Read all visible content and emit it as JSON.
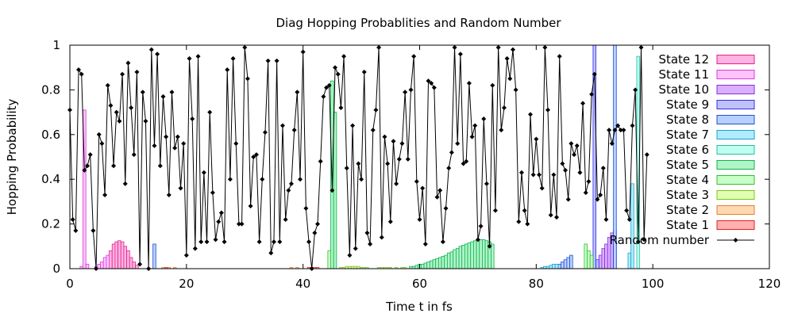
{
  "chart_data": {
    "type": "bar",
    "title": "Diag Hopping Probablities and Random Number",
    "xlabel": "Time t in fs",
    "ylabel": "Hopping Probability",
    "xlim": [
      0,
      120
    ],
    "ylim": [
      0,
      1
    ],
    "xticks": [
      "0",
      "20",
      "40",
      "60",
      "80",
      "100",
      "120"
    ],
    "yticks": [
      "0",
      "0.2",
      "0.4",
      "0.6",
      "0.8",
      "1"
    ],
    "legend_position": "top-right",
    "grid": false,
    "series": [
      {
        "name": "State 12",
        "fill": "#ffb3e0",
        "stroke": "#e0208f",
        "bars": [
          [
            7.0,
            0.08
          ],
          [
            7.5,
            0.11
          ],
          [
            8.0,
            0.12
          ],
          [
            8.5,
            0.125
          ],
          [
            9.0,
            0.12
          ],
          [
            9.5,
            0.1
          ],
          [
            10.0,
            0.08
          ],
          [
            10.5,
            0.05
          ],
          [
            11.0,
            0.03
          ],
          [
            11.5,
            0.015
          ]
        ]
      },
      {
        "name": "State 11",
        "fill": "#ffc2ff",
        "stroke": "#d43fd4",
        "bars": [
          [
            2.0,
            0.01
          ],
          [
            2.5,
            0.71
          ],
          [
            3.0,
            0.02
          ],
          [
            4.5,
            0.01
          ],
          [
            5.0,
            0.02
          ],
          [
            5.5,
            0.03
          ],
          [
            6.0,
            0.05
          ],
          [
            6.5,
            0.06
          ]
        ]
      },
      {
        "name": "State 10",
        "fill": "#d8b0ff",
        "stroke": "#8a2be2",
        "bars": [
          [
            91.0,
            0.06
          ],
          [
            91.5,
            0.09
          ],
          [
            92.0,
            0.11
          ],
          [
            92.5,
            0.14
          ],
          [
            93.0,
            0.16
          ]
        ]
      },
      {
        "name": "State 9",
        "fill": "#c0c0ff",
        "stroke": "#3030e0",
        "bars": [
          [
            90.0,
            1.0
          ],
          [
            90.5,
            0.04
          ],
          [
            93.5,
            0.17
          ]
        ]
      },
      {
        "name": "State 8",
        "fill": "#b8d0ff",
        "stroke": "#2050d0",
        "bars": [
          [
            14.5,
            0.11
          ],
          [
            84.0,
            0.02
          ],
          [
            84.5,
            0.03
          ],
          [
            85.0,
            0.04
          ],
          [
            85.5,
            0.05
          ],
          [
            86.0,
            0.06
          ],
          [
            93.5,
            1.0
          ]
        ]
      },
      {
        "name": "State 7",
        "fill": "#b0ecff",
        "stroke": "#1aa0cc",
        "bars": [
          [
            81.0,
            0.005
          ],
          [
            81.5,
            0.01
          ],
          [
            82.0,
            0.01
          ],
          [
            82.5,
            0.015
          ],
          [
            83.0,
            0.02
          ],
          [
            83.5,
            0.02
          ],
          [
            96.0,
            0.07
          ],
          [
            96.5,
            0.38
          ]
        ]
      },
      {
        "name": "State 6",
        "fill": "#c0fff0",
        "stroke": "#20c0a0",
        "bars": [
          [
            97.5,
            0.95
          ]
        ]
      },
      {
        "name": "State 5",
        "fill": "#b0f5c8",
        "stroke": "#10b050",
        "bars": [
          [
            45.0,
            0.84
          ],
          [
            45.5,
            0.7
          ],
          [
            58.5,
            0.01
          ],
          [
            59.0,
            0.01
          ],
          [
            59.5,
            0.015
          ],
          [
            60.0,
            0.02
          ],
          [
            60.5,
            0.02
          ],
          [
            61.0,
            0.025
          ],
          [
            61.5,
            0.03
          ],
          [
            62.0,
            0.035
          ],
          [
            62.5,
            0.04
          ],
          [
            63.0,
            0.045
          ],
          [
            63.5,
            0.05
          ],
          [
            64.0,
            0.055
          ],
          [
            64.5,
            0.06
          ],
          [
            65.0,
            0.07
          ],
          [
            65.5,
            0.075
          ],
          [
            66.0,
            0.085
          ],
          [
            66.5,
            0.09
          ],
          [
            67.0,
            0.1
          ],
          [
            67.5,
            0.105
          ],
          [
            68.0,
            0.11
          ],
          [
            68.5,
            0.115
          ],
          [
            69.0,
            0.12
          ],
          [
            69.5,
            0.125
          ],
          [
            70.0,
            0.13
          ],
          [
            70.5,
            0.13
          ],
          [
            71.0,
            0.13
          ],
          [
            71.5,
            0.125
          ],
          [
            72.0,
            0.12
          ],
          [
            72.5,
            0.11
          ]
        ]
      },
      {
        "name": "State 4",
        "fill": "#c8ffc8",
        "stroke": "#30c030",
        "bars": [
          [
            44.5,
            0.08
          ],
          [
            88.5,
            0.11
          ],
          [
            89.0,
            0.08
          ],
          [
            89.5,
            0.06
          ]
        ]
      },
      {
        "name": "State 3",
        "fill": "#e0ffb0",
        "stroke": "#80c020",
        "bars": [
          [
            46.5,
            0.005
          ],
          [
            47.0,
            0.005
          ],
          [
            47.5,
            0.01
          ],
          [
            48.0,
            0.01
          ],
          [
            48.5,
            0.01
          ],
          [
            49.0,
            0.01
          ],
          [
            49.5,
            0.01
          ],
          [
            50.0,
            0.005
          ],
          [
            50.5,
            0.005
          ],
          [
            51.0,
            0.005
          ],
          [
            53.0,
            0.005
          ],
          [
            53.5,
            0.005
          ],
          [
            54.0,
            0.005
          ],
          [
            54.5,
            0.005
          ],
          [
            55.0,
            0.005
          ],
          [
            56.0,
            0.005
          ],
          [
            57.0,
            0.005
          ],
          [
            57.5,
            0.005
          ]
        ]
      },
      {
        "name": "State 2",
        "fill": "#ffd8b0",
        "stroke": "#e08030",
        "bars": [
          [
            16.0,
            0.005
          ],
          [
            17.0,
            0.005
          ],
          [
            18.0,
            0.005
          ],
          [
            38.0,
            0.005
          ],
          [
            39.0,
            0.005
          ]
        ]
      },
      {
        "name": "State 1",
        "fill": "#ffb0b0",
        "stroke": "#e02020",
        "bars": [
          [
            41.0,
            0.005
          ],
          [
            41.5,
            0.005
          ],
          [
            42.0,
            0.005
          ],
          [
            42.5,
            0.005
          ],
          [
            16.5,
            0.005
          ]
        ]
      }
    ],
    "random_number": {
      "name": "Random number",
      "points": [
        [
          0.0,
          0.71
        ],
        [
          0.5,
          0.22
        ],
        [
          1.0,
          0.17
        ],
        [
          1.5,
          0.89
        ],
        [
          2.0,
          0.87
        ],
        [
          2.5,
          0.44
        ],
        [
          3.0,
          0.46
        ],
        [
          3.5,
          0.51
        ],
        [
          4.0,
          0.17
        ],
        [
          4.5,
          0.0
        ],
        [
          5.0,
          0.6
        ],
        [
          5.5,
          0.56
        ],
        [
          6.0,
          0.33
        ],
        [
          6.5,
          0.82
        ],
        [
          7.0,
          0.73
        ],
        [
          7.5,
          0.46
        ],
        [
          8.0,
          0.7
        ],
        [
          8.5,
          0.66
        ],
        [
          9.0,
          0.87
        ],
        [
          9.5,
          0.38
        ],
        [
          10.0,
          0.92
        ],
        [
          10.5,
          0.72
        ],
        [
          11.0,
          0.51
        ],
        [
          11.5,
          0.88
        ],
        [
          12.0,
          0.02
        ],
        [
          12.5,
          0.79
        ],
        [
          13.0,
          0.66
        ],
        [
          13.5,
          0.0
        ],
        [
          14.0,
          0.98
        ],
        [
          14.5,
          0.55
        ],
        [
          15.0,
          0.96
        ],
        [
          15.5,
          0.46
        ],
        [
          16.0,
          0.77
        ],
        [
          16.5,
          0.59
        ],
        [
          17.0,
          0.33
        ],
        [
          17.5,
          0.79
        ],
        [
          18.0,
          0.54
        ],
        [
          18.5,
          0.59
        ],
        [
          19.0,
          0.36
        ],
        [
          19.5,
          0.56
        ],
        [
          20.0,
          0.06
        ],
        [
          20.5,
          0.94
        ],
        [
          21.0,
          0.67
        ],
        [
          21.5,
          0.09
        ],
        [
          22.0,
          0.95
        ],
        [
          22.5,
          0.12
        ],
        [
          23.0,
          0.43
        ],
        [
          23.5,
          0.12
        ],
        [
          24.0,
          0.7
        ],
        [
          24.5,
          0.34
        ],
        [
          25.0,
          0.13
        ],
        [
          25.5,
          0.21
        ],
        [
          26.0,
          0.25
        ],
        [
          26.5,
          0.12
        ],
        [
          27.0,
          0.89
        ],
        [
          27.5,
          0.4
        ],
        [
          28.0,
          0.94
        ],
        [
          28.5,
          0.56
        ],
        [
          29.0,
          0.2
        ],
        [
          29.5,
          0.2
        ],
        [
          30.0,
          0.99
        ],
        [
          30.5,
          0.85
        ],
        [
          31.0,
          0.28
        ],
        [
          31.5,
          0.5
        ],
        [
          32.0,
          0.51
        ],
        [
          32.5,
          0.12
        ],
        [
          33.0,
          0.4
        ],
        [
          33.5,
          0.61
        ],
        [
          34.0,
          0.93
        ],
        [
          34.5,
          0.07
        ],
        [
          35.0,
          0.12
        ],
        [
          35.5,
          0.93
        ],
        [
          36.0,
          0.12
        ],
        [
          36.5,
          0.64
        ],
        [
          37.0,
          0.22
        ],
        [
          37.5,
          0.35
        ],
        [
          38.0,
          0.38
        ],
        [
          38.5,
          0.62
        ],
        [
          39.0,
          0.79
        ],
        [
          39.5,
          0.4
        ],
        [
          40.0,
          0.97
        ],
        [
          40.5,
          0.27
        ],
        [
          41.0,
          0.12
        ],
        [
          41.5,
          0.0
        ],
        [
          42.0,
          0.16
        ],
        [
          42.5,
          0.2
        ],
        [
          43.0,
          0.48
        ],
        [
          43.5,
          0.77
        ],
        [
          44.0,
          0.81
        ],
        [
          44.5,
          0.82
        ],
        [
          45.0,
          0.35
        ],
        [
          45.5,
          0.9
        ],
        [
          46.0,
          0.87
        ],
        [
          46.5,
          0.72
        ],
        [
          47.0,
          0.95
        ],
        [
          47.5,
          0.45
        ],
        [
          48.0,
          0.06
        ],
        [
          48.5,
          0.64
        ],
        [
          49.0,
          0.09
        ],
        [
          49.5,
          0.47
        ],
        [
          50.0,
          0.4
        ],
        [
          50.5,
          0.88
        ],
        [
          51.0,
          0.16
        ],
        [
          51.5,
          0.11
        ],
        [
          52.0,
          0.62
        ],
        [
          52.5,
          0.71
        ],
        [
          53.0,
          0.99
        ],
        [
          53.5,
          0.14
        ],
        [
          54.0,
          0.59
        ],
        [
          54.5,
          0.47
        ],
        [
          55.0,
          0.21
        ],
        [
          55.5,
          0.57
        ],
        [
          56.0,
          0.38
        ],
        [
          56.5,
          0.49
        ],
        [
          57.0,
          0.56
        ],
        [
          57.5,
          0.79
        ],
        [
          58.0,
          0.49
        ],
        [
          58.5,
          0.8
        ],
        [
          59.0,
          0.95
        ],
        [
          59.5,
          0.39
        ],
        [
          60.0,
          0.22
        ],
        [
          60.5,
          0.36
        ],
        [
          61.0,
          0.11
        ],
        [
          61.5,
          0.84
        ],
        [
          62.0,
          0.83
        ],
        [
          62.5,
          0.81
        ],
        [
          63.0,
          0.32
        ],
        [
          63.5,
          0.35
        ],
        [
          64.0,
          0.12
        ],
        [
          64.5,
          0.27
        ],
        [
          65.0,
          0.45
        ],
        [
          65.5,
          0.52
        ],
        [
          66.0,
          0.99
        ],
        [
          66.5,
          0.56
        ],
        [
          67.0,
          0.96
        ],
        [
          67.5,
          0.47
        ],
        [
          68.0,
          0.48
        ],
        [
          68.5,
          0.83
        ],
        [
          69.0,
          0.59
        ],
        [
          69.5,
          0.64
        ],
        [
          70.0,
          0.13
        ],
        [
          70.5,
          0.19
        ],
        [
          71.0,
          0.67
        ],
        [
          71.5,
          0.38
        ],
        [
          72.0,
          0.1
        ],
        [
          72.5,
          0.82
        ],
        [
          73.0,
          0.26
        ],
        [
          73.5,
          0.99
        ],
        [
          74.0,
          0.62
        ],
        [
          74.5,
          0.72
        ],
        [
          75.0,
          0.94
        ],
        [
          75.5,
          0.85
        ],
        [
          76.0,
          0.98
        ],
        [
          76.5,
          0.8
        ],
        [
          77.0,
          0.21
        ],
        [
          77.5,
          0.43
        ],
        [
          78.0,
          0.26
        ],
        [
          78.5,
          0.2
        ],
        [
          79.0,
          0.69
        ],
        [
          79.5,
          0.42
        ],
        [
          80.0,
          0.58
        ],
        [
          80.5,
          0.42
        ],
        [
          81.0,
          0.36
        ],
        [
          81.5,
          0.99
        ],
        [
          82.0,
          0.71
        ],
        [
          82.5,
          0.24
        ],
        [
          83.0,
          0.42
        ],
        [
          83.5,
          0.23
        ],
        [
          84.0,
          0.95
        ],
        [
          84.5,
          0.47
        ],
        [
          85.0,
          0.44
        ],
        [
          85.5,
          0.31
        ],
        [
          86.0,
          0.56
        ],
        [
          86.5,
          0.51
        ],
        [
          87.0,
          0.55
        ],
        [
          87.5,
          0.43
        ],
        [
          88.0,
          0.74
        ],
        [
          88.5,
          0.34
        ],
        [
          89.0,
          0.39
        ],
        [
          89.5,
          0.78
        ],
        [
          90.0,
          0.87
        ],
        [
          90.5,
          0.31
        ],
        [
          91.0,
          0.33
        ],
        [
          91.5,
          0.45
        ],
        [
          92.0,
          0.22
        ],
        [
          92.5,
          0.62
        ],
        [
          93.0,
          0.56
        ],
        [
          93.5,
          0.62
        ],
        [
          94.0,
          0.64
        ],
        [
          94.5,
          0.62
        ],
        [
          95.0,
          0.62
        ],
        [
          95.5,
          0.26
        ],
        [
          96.0,
          0.22
        ],
        [
          96.5,
          0.64
        ],
        [
          97.0,
          0.8
        ],
        [
          97.5,
          0.12
        ],
        [
          98.0,
          0.99
        ],
        [
          98.5,
          0.13
        ],
        [
          99.0,
          0.51
        ]
      ]
    }
  }
}
